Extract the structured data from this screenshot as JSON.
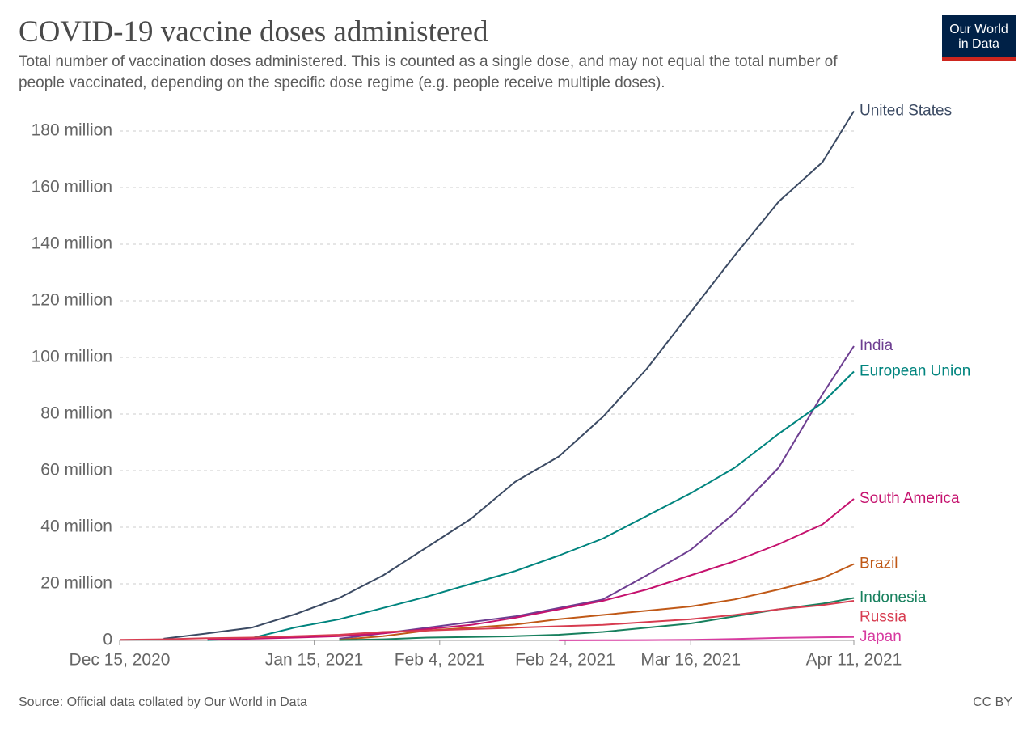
{
  "chart_data": {
    "type": "line",
    "title": "COVID-19 vaccine doses administered",
    "subtitle": "Total number of vaccination doses administered. This is counted as a single dose, and may not equal the total number of people vaccinated, depending on the specific dose regime (e.g. people receive multiple doses).",
    "logo": [
      "Our World",
      "in Data"
    ],
    "source": "Source: Official data collated by Our World in Data",
    "license": "CC BY",
    "x": [
      "Dec 15, 2020",
      "Dec 22, 2020",
      "Dec 29, 2020",
      "Jan 5, 2021",
      "Jan 12, 2021",
      "Jan 19, 2021",
      "Jan 26, 2021",
      "Feb 2, 2021",
      "Feb 9, 2021",
      "Feb 16, 2021",
      "Feb 23, 2021",
      "Mar 2, 2021",
      "Mar 9, 2021",
      "Mar 16, 2021",
      "Mar 23, 2021",
      "Mar 30, 2021",
      "Apr 6, 2021",
      "Apr 11, 2021"
    ],
    "xlim": [
      "Dec 15, 2020",
      "Apr 11, 2021"
    ],
    "xticks": [
      "Dec 15, 2020",
      "Jan 15, 2021",
      "Feb 4, 2021",
      "Feb 24, 2021",
      "Mar 16, 2021",
      "Apr 11, 2021"
    ],
    "ylim": [
      0,
      180000000
    ],
    "yticks": [
      0,
      {
        "value": 20000000,
        "label": "20 million"
      },
      {
        "value": 40000000,
        "label": "40 million"
      },
      {
        "value": 60000000,
        "label": "60 million"
      },
      {
        "value": 80000000,
        "label": "80 million"
      },
      {
        "value": 100000000,
        "label": "100 million"
      },
      {
        "value": 120000000,
        "label": "120 million"
      },
      {
        "value": 140000000,
        "label": "140 million"
      },
      {
        "value": 160000000,
        "label": "160 million"
      },
      {
        "value": 180000000,
        "label": "180 million"
      }
    ],
    "grid": true,
    "series": [
      {
        "name": "United States",
        "color": "#3b4a63",
        "values": [
          null,
          600000,
          2500000,
          4500000,
          9300000,
          15000000,
          23000000,
          33000000,
          43000000,
          56000000,
          65000000,
          79000000,
          96000000,
          116000000,
          136000000,
          155000000,
          169000000,
          187000000
        ]
      },
      {
        "name": "India",
        "color": "#6d3e91",
        "values": [
          null,
          null,
          null,
          null,
          null,
          600000,
          2500000,
          4500000,
          6500000,
          8500000,
          11500000,
          14500000,
          23000000,
          32000000,
          45000000,
          61000000,
          87000000,
          104000000
        ]
      },
      {
        "name": "European Union",
        "color": "#00847e",
        "values": [
          null,
          null,
          100000,
          800000,
          4600000,
          7500000,
          11500000,
          15500000,
          20000000,
          24500000,
          30000000,
          36000000,
          44000000,
          52000000,
          61000000,
          73000000,
          84000000,
          95000000
        ]
      },
      {
        "name": "South America",
        "color": "#c5126e",
        "values": [
          null,
          null,
          300000,
          600000,
          1000000,
          1500000,
          2500000,
          4000000,
          5500000,
          8000000,
          11000000,
          14000000,
          18000000,
          23000000,
          28000000,
          34000000,
          41000000,
          50000000
        ]
      },
      {
        "name": "Brazil",
        "color": "#c05917",
        "values": [
          null,
          null,
          null,
          null,
          null,
          200000,
          1500000,
          3500000,
          4500000,
          5600000,
          7500000,
          9000000,
          10500000,
          12000000,
          14500000,
          18000000,
          22000000,
          27000000
        ]
      },
      {
        "name": "Indonesia",
        "color": "#18805e",
        "values": [
          null,
          null,
          null,
          null,
          null,
          100000,
          400000,
          1000000,
          1200000,
          1500000,
          2000000,
          3000000,
          4500000,
          6000000,
          8500000,
          11000000,
          13000000,
          15000000
        ]
      },
      {
        "name": "Russia",
        "color": "#d73c50",
        "values": [
          200000,
          400000,
          800000,
          1000000,
          1500000,
          2000000,
          3000000,
          3500000,
          4000000,
          4500000,
          5000000,
          5500000,
          6500000,
          7500000,
          9000000,
          11000000,
          12500000,
          14000000
        ]
      },
      {
        "name": "Japan",
        "color": "#d73ba0",
        "values": [
          null,
          null,
          null,
          null,
          null,
          null,
          null,
          null,
          null,
          null,
          20000,
          50000,
          100000,
          200000,
          500000,
          900000,
          1100000,
          1200000
        ]
      }
    ]
  }
}
